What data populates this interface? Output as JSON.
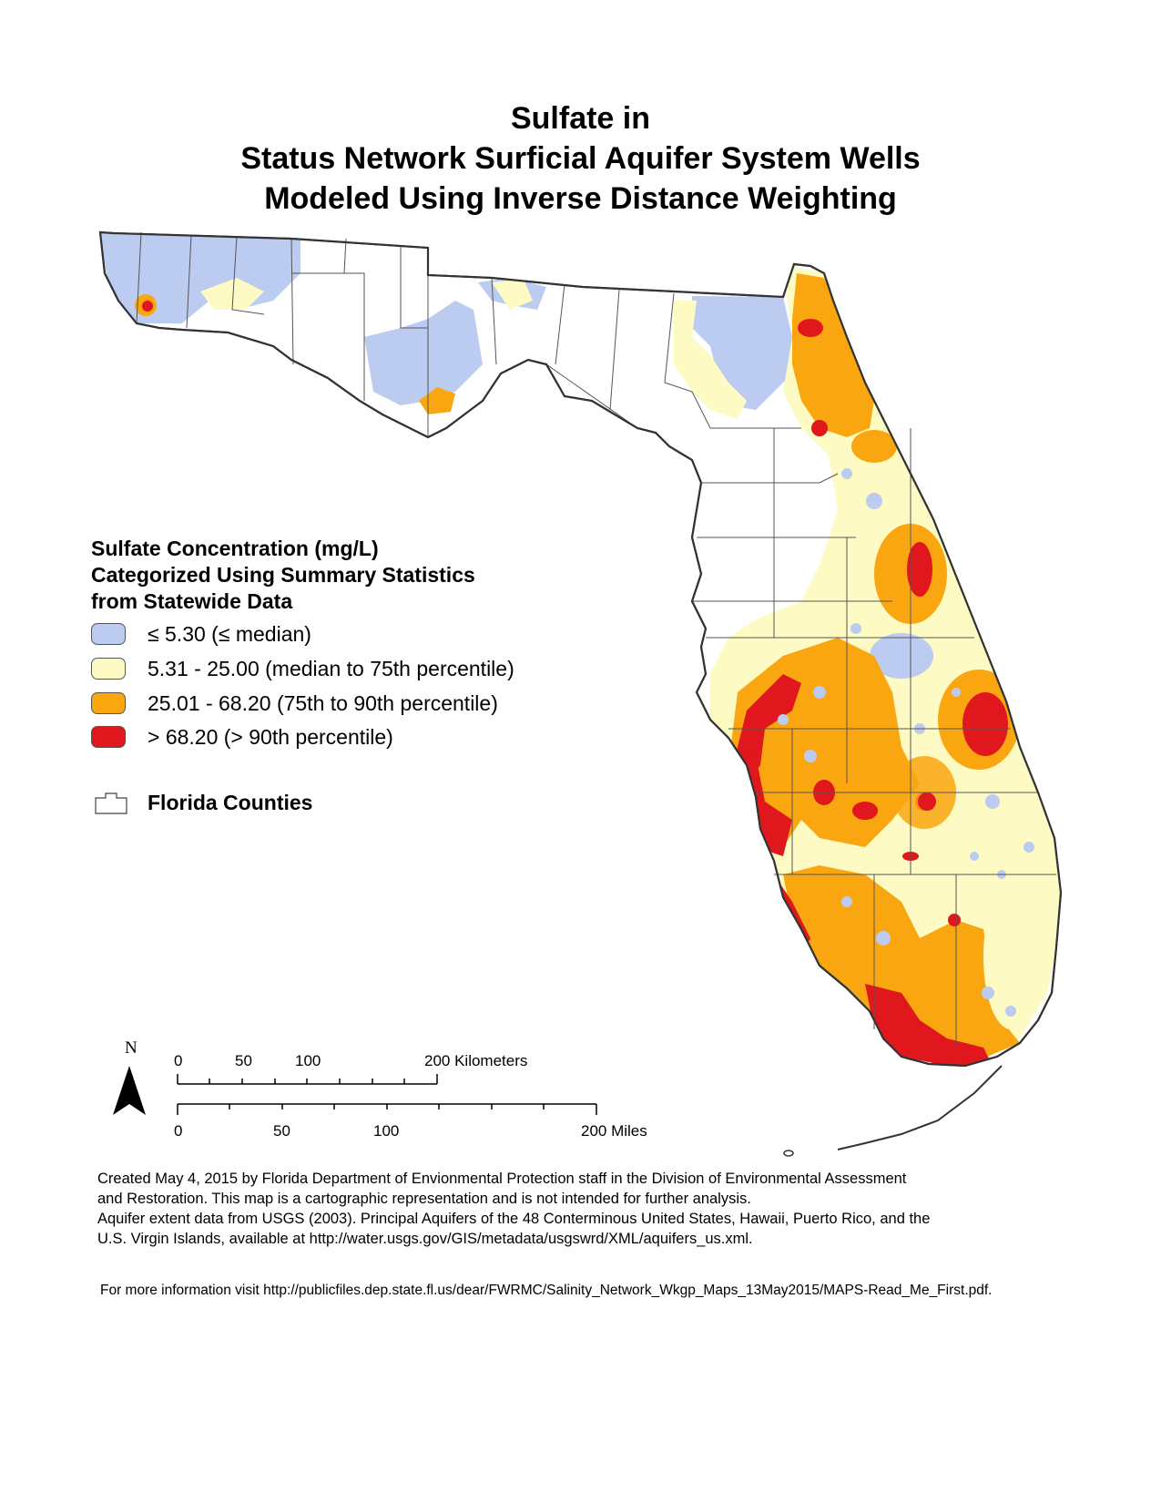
{
  "title": {
    "line1": "Sulfate in",
    "line2": "Status Network Surficial Aquifer System Wells",
    "line3": "Modeled Using Inverse Distance Weighting"
  },
  "legend": {
    "title_lines": [
      "Sulfate Concentration (mg/L)",
      "Categorized Using Summary Statistics",
      "from Statewide Data"
    ],
    "classes": [
      {
        "label": "≤ 5.30 (≤ median)",
        "color": "#bccbf0"
      },
      {
        "label": "5.31 - 25.00 (median to 75th percentile)",
        "color": "#fdfbc3"
      },
      {
        "label": "25.01 - 68.20 (75th to 90th percentile)",
        "color": "#f9a611"
      },
      {
        "label": "> 68.20 (> 90th percentile)",
        "color": "#e0171c"
      }
    ],
    "counties_label": "Florida Counties"
  },
  "scale_bar": {
    "north_label": "N",
    "km_ticks": [
      "0",
      "50",
      "100"
    ],
    "km_end": "200 Kilometers",
    "mi_ticks": [
      "0",
      "50",
      "100"
    ],
    "mi_end": "200 Miles"
  },
  "credits": {
    "lines": [
      "Created May 4, 2015 by Florida Department of Envionmental Protection staff in the Division of Environmental Assessment",
      "and Restoration.  This map is a cartographic representation and is not intended for further analysis.",
      "Aquifer extent data from USGS (2003). Principal Aquifers of the 48 Conterminous United States, Hawaii, Puerto Rico, and the",
      "U.S. Virgin Islands, available at http://water.usgs.gov/GIS/metadata/usgswrd/XML/aquifers_us.xml."
    ],
    "more_info": "For more information visit http://publicfiles.dep.state.fl.us/dear/FWRMC/Salinity_Network_Wkgp_Maps_13May2015/MAPS-Read_Me_First.pdf."
  },
  "colors": {
    "low": "#bccbf0",
    "moderate": "#fdfbc3",
    "high": "#f9a611",
    "very_high": "#e0171c",
    "county_fill": "#ffffff",
    "county_line": "#555555",
    "coast": "#333333"
  }
}
